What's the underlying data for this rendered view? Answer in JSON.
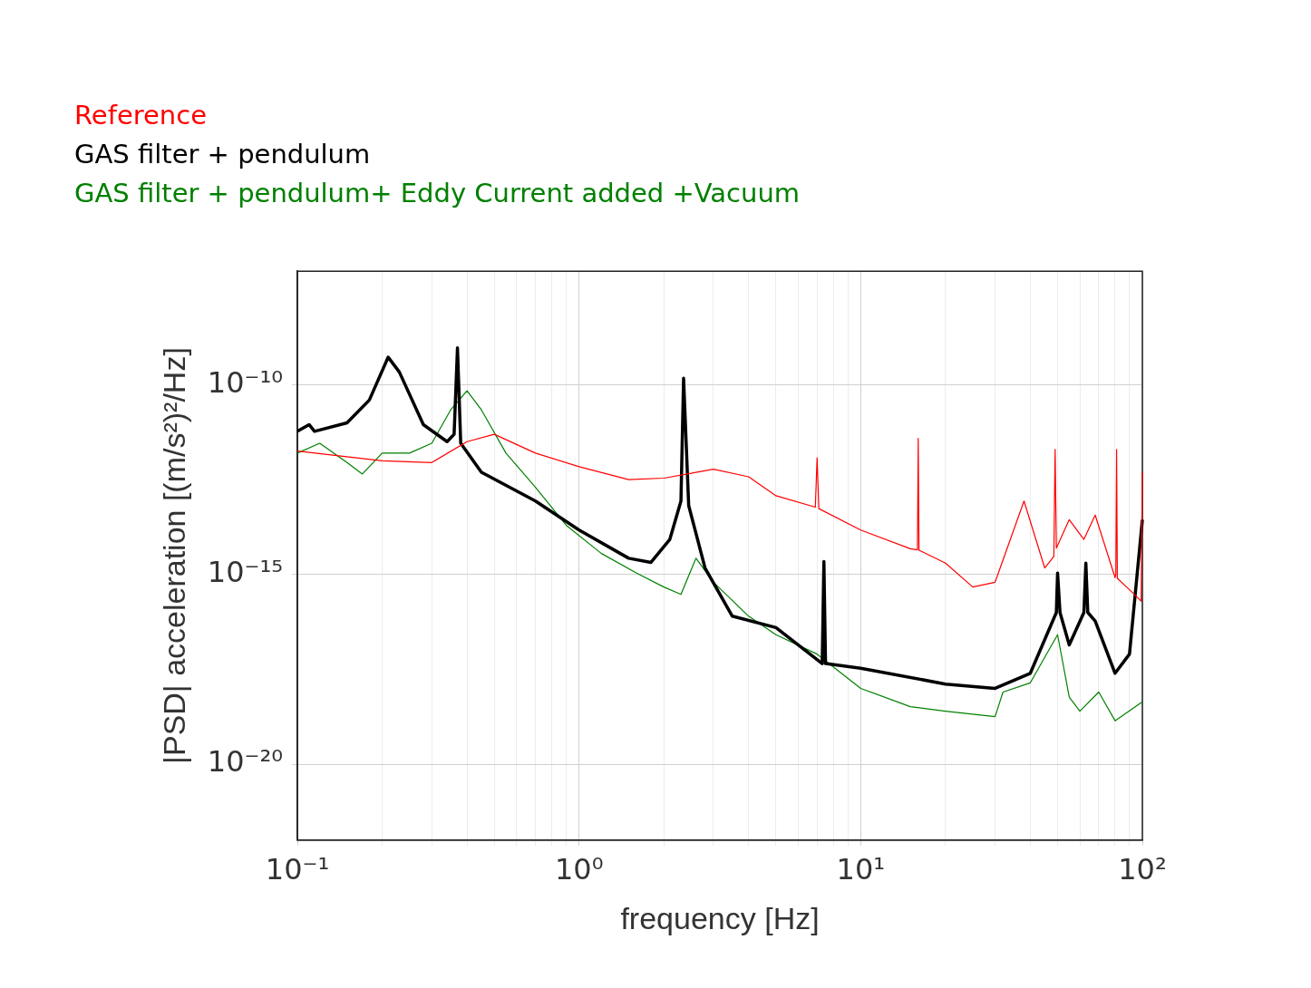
{
  "chart_data": {
    "type": "line",
    "xlabel": "frequency [Hz]",
    "ylabel": "|PSD| acceleration [(m/s²)²/Hz]",
    "log": "xy",
    "grid": true,
    "legend": "top left",
    "marker": "none",
    "line_style": "solid",
    "xlim": [
      0.1,
      100
    ],
    "ylim": [
      1e-22,
      1e-07
    ],
    "xticks": [
      {
        "value": 0.1,
        "label": "10⁻¹"
      },
      {
        "value": 0.2,
        "label": null
      },
      {
        "value": 0.3,
        "label": null
      },
      {
        "value": 0.4,
        "label": null
      },
      {
        "value": 0.5,
        "label": null
      },
      {
        "value": 0.6,
        "label": null
      },
      {
        "value": 0.7,
        "label": null
      },
      {
        "value": 0.8,
        "label": null
      },
      {
        "value": 0.9,
        "label": null
      },
      {
        "value": 1,
        "label": "10⁰"
      },
      {
        "value": 2,
        "label": null
      },
      {
        "value": 3,
        "label": null
      },
      {
        "value": 4,
        "label": null
      },
      {
        "value": 5,
        "label": null
      },
      {
        "value": 6,
        "label": null
      },
      {
        "value": 7,
        "label": null
      },
      {
        "value": 8,
        "label": null
      },
      {
        "value": 9,
        "label": null
      },
      {
        "value": 10,
        "label": "10¹"
      },
      {
        "value": 20,
        "label": null
      },
      {
        "value": 30,
        "label": null
      },
      {
        "value": 40,
        "label": null
      },
      {
        "value": 50,
        "label": null
      },
      {
        "value": 60,
        "label": null
      },
      {
        "value": 70,
        "label": null
      },
      {
        "value": 80,
        "label": null
      },
      {
        "value": 90,
        "label": null
      },
      {
        "value": 100,
        "label": "10²"
      }
    ],
    "yticks": [
      {
        "value": 1e-20,
        "label": "10⁻²⁰"
      },
      {
        "value": 1e-15,
        "label": "10⁻¹⁵"
      },
      {
        "value": 1e-10,
        "label": "10⁻¹⁰"
      }
    ],
    "series": [
      {
        "name": "Reference",
        "color": "#ff0000",
        "x": [
          0.1,
          0.2,
          0.3,
          0.4,
          0.5,
          0.7,
          1,
          1.5,
          2,
          3,
          4,
          5,
          6.9,
          7,
          7.1,
          10,
          15,
          15.9,
          16,
          16.1,
          20,
          25,
          30,
          38,
          45,
          48.5,
          49,
          49.5,
          55,
          62,
          68,
          80,
          80.5,
          81,
          81.5,
          90,
          99,
          100
        ],
        "values": [
          1.8e-12,
          1e-12,
          9e-13,
          3.2e-12,
          5e-12,
          1.6e-12,
          7e-13,
          3.2e-13,
          3.5e-13,
          6e-13,
          3.8e-13,
          1.2e-13,
          6e-14,
          1.2e-12,
          5.5e-14,
          1.5e-14,
          4.8e-15,
          4.5e-15,
          3.9e-12,
          4.4e-15,
          2e-15,
          4.7e-16,
          6.3e-16,
          8.7e-14,
          1.5e-15,
          3e-15,
          2e-12,
          5e-15,
          2.8e-14,
          8.5e-15,
          3.7e-14,
          8.3e-16,
          1e-15,
          2e-12,
          8e-16,
          4e-16,
          2e-16,
          5e-13
        ]
      },
      {
        "name": "GAS filter + pendulum",
        "color": "#000000",
        "x": [
          0.1,
          0.11,
          0.115,
          0.15,
          0.18,
          0.21,
          0.23,
          0.28,
          0.34,
          0.36,
          0.37,
          0.38,
          0.45,
          0.7,
          1,
          1.5,
          1.8,
          2.1,
          2.3,
          2.35,
          2.45,
          2.8,
          3.5,
          5,
          7.3,
          7.4,
          7.5,
          10,
          20,
          30,
          40,
          49.5,
          50,
          51,
          55,
          62,
          63,
          64,
          68,
          80,
          90,
          100
        ],
        "values": [
          6e-12,
          9e-12,
          6e-12,
          1e-11,
          4e-11,
          5.4e-10,
          2.2e-10,
          9e-12,
          3.2e-12,
          5e-12,
          9.5e-10,
          2.9e-12,
          5e-13,
          8.7e-14,
          1.5e-14,
          2.7e-15,
          2.1e-15,
          8.5e-15,
          8.7e-14,
          1.5e-10,
          6.6e-14,
          1.5e-15,
          8e-17,
          4e-17,
          4.5e-18,
          2.2e-15,
          4.5e-18,
          3.4e-18,
          1.3e-18,
          1e-18,
          2.5e-18,
          1e-16,
          1.1e-15,
          1e-16,
          1.4e-17,
          1e-16,
          2e-15,
          1e-16,
          6e-17,
          2.5e-18,
          8e-18,
          2.8e-14
        ]
      },
      {
        "name": "GAS filter + pendulum+ Eddy Current added +Vacuum",
        "color": "#008000",
        "x": [
          0.1,
          0.12,
          0.15,
          0.17,
          0.2,
          0.25,
          0.3,
          0.35,
          0.4,
          0.45,
          0.55,
          0.7,
          0.9,
          1.2,
          1.6,
          2,
          2.3,
          2.6,
          3,
          4,
          5,
          7,
          10,
          15,
          20,
          30,
          32,
          40,
          50,
          55,
          60,
          70,
          80,
          100
        ],
        "values": [
          1.6e-12,
          2.9e-12,
          9e-13,
          4.5e-13,
          1.6e-12,
          1.6e-12,
          2.9e-12,
          2.2e-11,
          7e-11,
          2.2e-11,
          1.6e-12,
          2e-13,
          2e-14,
          3.6e-15,
          1.1e-15,
          4.7e-16,
          3e-16,
          2.7e-15,
          6.3e-16,
          8e-17,
          2.6e-17,
          8e-18,
          1e-18,
          3.3e-19,
          2.5e-19,
          1.8e-19,
          8e-19,
          1.4e-18,
          2.6e-17,
          5.9e-19,
          2.5e-19,
          8e-19,
          1.4e-19,
          4.4e-19
        ]
      }
    ]
  }
}
